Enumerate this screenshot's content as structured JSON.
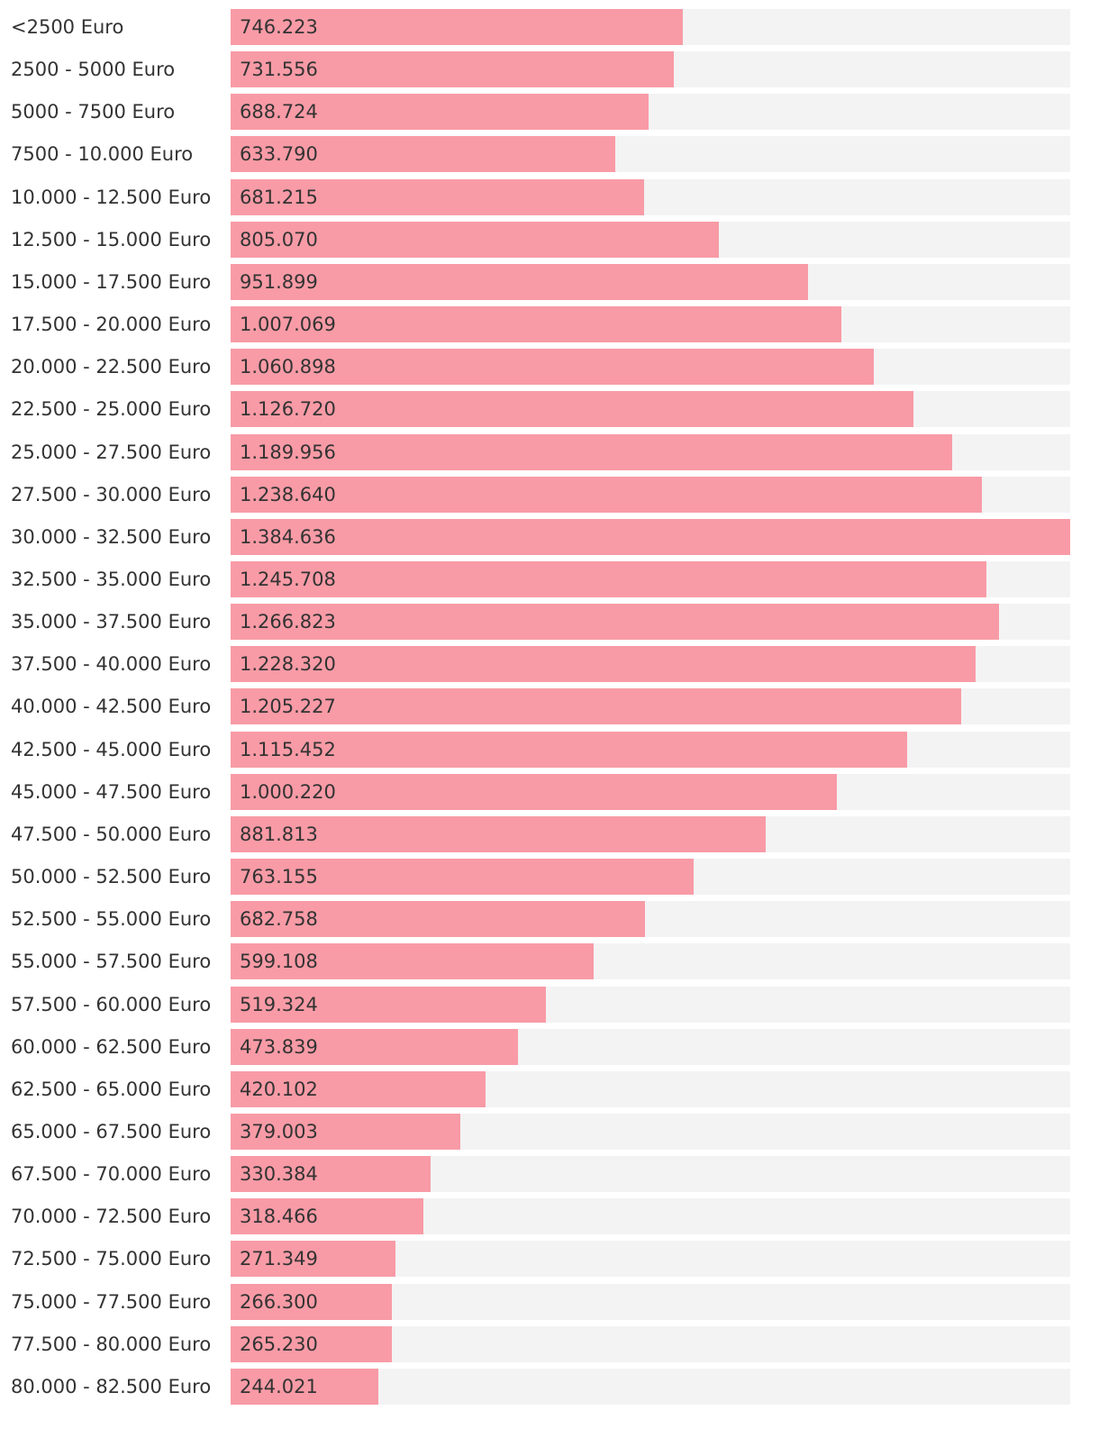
{
  "colors": {
    "bar": "#f89ba6",
    "track": "#f3f3f3",
    "text": "#333333",
    "background": "#ffffff"
  },
  "chart_data": {
    "type": "bar",
    "orientation": "horizontal",
    "xlim": [
      0,
      1384636
    ],
    "grid": false,
    "legend": "none",
    "categories": [
      "<2500 Euro",
      "2500 - 5000 Euro",
      "5000 - 7500 Euro",
      "7500 - 10.000 Euro",
      "10.000 - 12.500 Euro",
      "12.500 - 15.000 Euro",
      "15.000 - 17.500 Euro",
      "17.500 - 20.000 Euro",
      "20.000 - 22.500 Euro",
      "22.500 - 25.000 Euro",
      "25.000 - 27.500 Euro",
      "27.500 - 30.000 Euro",
      "30.000 - 32.500 Euro",
      "32.500 - 35.000 Euro",
      "35.000 - 37.500 Euro",
      "37.500 - 40.000 Euro",
      "40.000 - 42.500 Euro",
      "42.500 - 45.000 Euro",
      "45.000 - 47.500 Euro",
      "47.500 - 50.000 Euro",
      "50.000 - 52.500 Euro",
      "52.500 - 55.000 Euro",
      "55.000 - 57.500 Euro",
      "57.500 - 60.000 Euro",
      "60.000 - 62.500 Euro",
      "62.500 - 65.000 Euro",
      "65.000 - 67.500 Euro",
      "67.500 - 70.000 Euro",
      "70.000 - 72.500 Euro",
      "72.500 - 75.000 Euro",
      "75.000 - 77.500 Euro",
      "77.500 - 80.000 Euro",
      "80.000 - 82.500 Euro"
    ],
    "values": [
      746223,
      731556,
      688724,
      633790,
      681215,
      805070,
      951899,
      1007069,
      1060898,
      1126720,
      1189956,
      1238640,
      1384636,
      1245708,
      1266823,
      1228320,
      1205227,
      1115452,
      1000220,
      881813,
      763155,
      682758,
      599108,
      519324,
      473839,
      420102,
      379003,
      330384,
      318466,
      271349,
      266300,
      265230,
      244021
    ],
    "value_labels": [
      "746.223",
      "731.556",
      "688.724",
      "633.790",
      "681.215",
      "805.070",
      "951.899",
      "1.007.069",
      "1.060.898",
      "1.126.720",
      "1.189.956",
      "1.238.640",
      "1.384.636",
      "1.245.708",
      "1.266.823",
      "1.228.320",
      "1.205.227",
      "1.115.452",
      "1.000.220",
      "881.813",
      "763.155",
      "682.758",
      "599.108",
      "519.324",
      "473.839",
      "420.102",
      "379.003",
      "330.384",
      "318.466",
      "271.349",
      "266.300",
      "265.230",
      "244.021"
    ]
  }
}
